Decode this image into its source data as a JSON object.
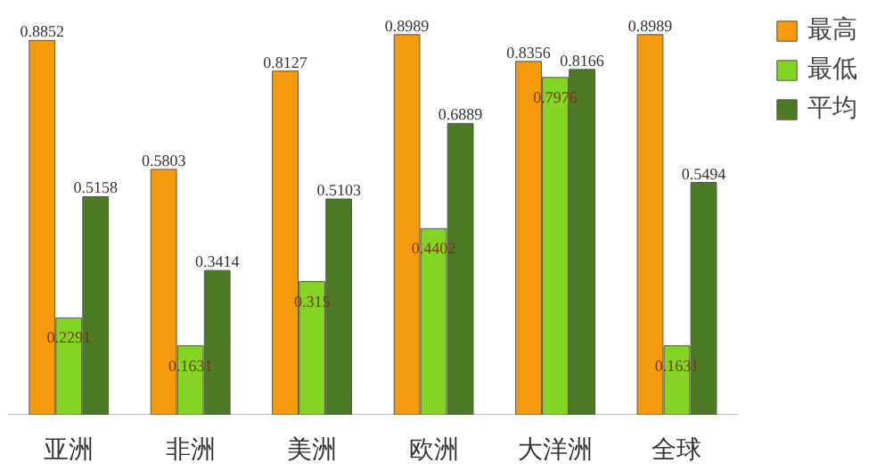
{
  "chart_data": {
    "type": "bar",
    "categories": [
      "亚洲",
      "非洲",
      "美洲",
      "欧洲",
      "大洋洲",
      "全球"
    ],
    "series": [
      {
        "name": "最高",
        "color": "#f59a0c",
        "values": [
          0.8852,
          0.5803,
          0.8127,
          0.8989,
          0.8356,
          0.8989
        ]
      },
      {
        "name": "最低",
        "color": "#84d424",
        "values": [
          0.2291,
          0.1631,
          0.315,
          0.4402,
          0.7976,
          0.1631
        ]
      },
      {
        "name": "平均",
        "color": "#4c7a25",
        "values": [
          0.5158,
          0.3414,
          0.5103,
          0.6889,
          0.8166,
          0.5494
        ]
      }
    ],
    "data_labels": true,
    "legend": "top right",
    "grid": false
  }
}
